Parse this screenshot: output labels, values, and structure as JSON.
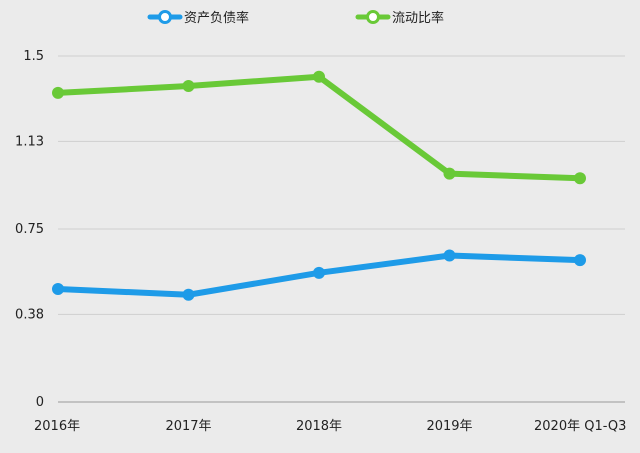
{
  "chart_data": {
    "type": "line",
    "categories": [
      "2016年",
      "2017年",
      "2018年",
      "2019年",
      "2020年 Q1-Q3"
    ],
    "y_ticks": [
      0,
      0.38,
      0.75,
      1.13,
      1.5
    ],
    "y_tick_labels": [
      "0",
      "0.38",
      "0.75",
      "1.13",
      "1.5"
    ],
    "ylim": [
      0,
      1.5
    ],
    "grid": true,
    "legend_position": "top-center",
    "series": [
      {
        "name": "资产负债率",
        "color": "#1e9be8",
        "values": [
          0.49,
          0.465,
          0.56,
          0.635,
          0.615
        ]
      },
      {
        "name": "流动比率",
        "color": "#69c937",
        "values": [
          1.34,
          1.37,
          1.41,
          0.99,
          0.97
        ]
      }
    ]
  }
}
